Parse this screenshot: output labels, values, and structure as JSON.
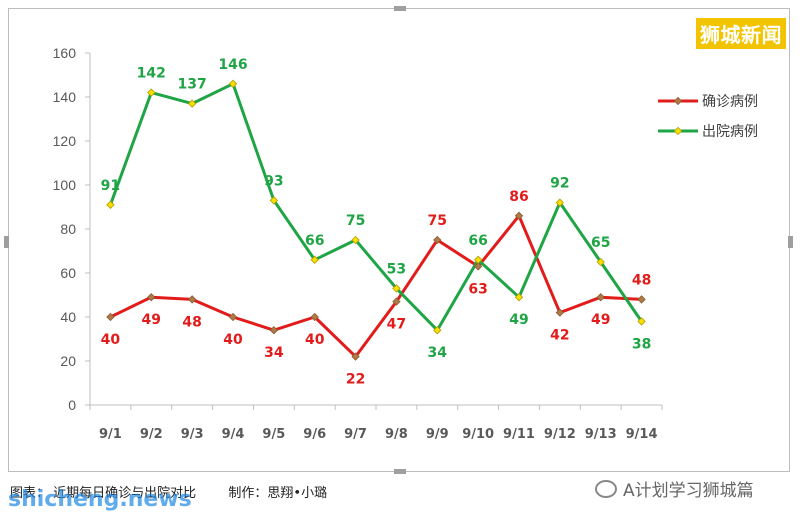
{
  "brand_label": "狮城新闻",
  "caption": {
    "left": "图表：  近期每日确诊与出院对比",
    "right": "制作：思翔•小璐"
  },
  "watermark": "shicheng.news",
  "wechat_label": "A计划学习狮城篇",
  "chart_data": {
    "type": "line",
    "categories": [
      "9/1",
      "9/2",
      "9/3",
      "9/4",
      "9/5",
      "9/6",
      "9/7",
      "9/8",
      "9/9",
      "9/10",
      "9/11",
      "9/12",
      "9/13",
      "9/14"
    ],
    "ylim": [
      0,
      160
    ],
    "yticks": [
      0,
      20,
      40,
      60,
      80,
      100,
      120,
      140,
      160
    ],
    "grid": false,
    "legend_position": "top-right",
    "series": [
      {
        "name": "确诊病例",
        "color": "#e21b1b",
        "marker_color": "#b07a48",
        "values": [
          40,
          49,
          48,
          40,
          34,
          40,
          22,
          47,
          75,
          63,
          86,
          42,
          49,
          48
        ]
      },
      {
        "name": "出院病例",
        "color": "#1fa545",
        "marker_color": "#f5e000",
        "values": [
          91,
          142,
          137,
          146,
          93,
          66,
          75,
          53,
          34,
          66,
          49,
          92,
          65,
          38
        ]
      }
    ]
  }
}
